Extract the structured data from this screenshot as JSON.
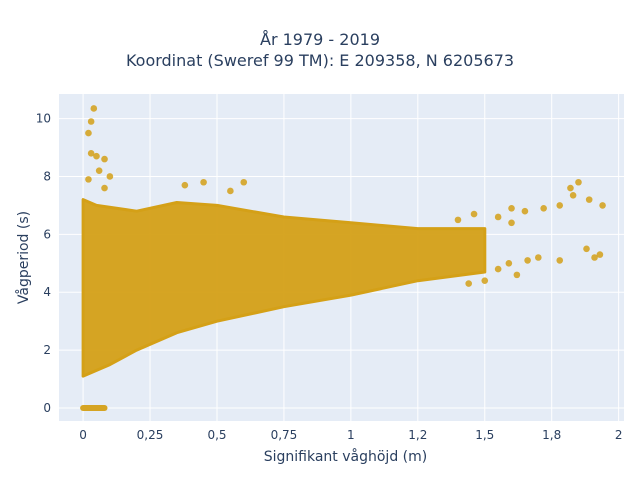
{
  "chart_data": {
    "type": "scatter",
    "title_lines": [
      "År 1979 - 2019",
      "Koordinat (Sweref 99 TM): E 209358, N 6205673"
    ],
    "xlabel": "Signifikant våghöjd (m)",
    "ylabel": "Vågperiod (s)",
    "xlim": [
      -0.09,
      2.02
    ],
    "ylim": [
      -0.45,
      10.85
    ],
    "x_ticks": [
      0,
      0.25,
      0.5,
      0.75,
      1,
      1.25,
      1.5,
      1.75,
      2
    ],
    "x_tick_labels": [
      "0",
      "0,25",
      "0,5",
      "0,75",
      "1",
      "1,2",
      "1,5",
      "1,8",
      "2"
    ],
    "y_ticks": [
      0,
      2,
      4,
      6,
      8,
      10
    ],
    "y_tick_labels": [
      "0",
      "2",
      "4",
      "6",
      "8",
      "10"
    ],
    "grid": true,
    "legend": "none",
    "colors": {
      "marker": "#d4a017",
      "plot_bg": "#e5ecf6",
      "grid": "#ffffff"
    },
    "dense_region": {
      "description_points": [
        [
          0,
          1.1
        ],
        [
          0.1,
          1.5
        ],
        [
          0.2,
          2.0
        ],
        [
          0.35,
          2.6
        ],
        [
          0.5,
          3.0
        ],
        [
          0.75,
          3.5
        ],
        [
          1.0,
          3.9
        ],
        [
          1.25,
          4.4
        ],
        [
          1.5,
          4.7
        ],
        [
          1.5,
          6.2
        ],
        [
          1.25,
          6.2
        ],
        [
          1.0,
          6.4
        ],
        [
          0.75,
          6.6
        ],
        [
          0.5,
          7.0
        ],
        [
          0.35,
          7.1
        ],
        [
          0.2,
          6.8
        ],
        [
          0.05,
          7.0
        ],
        [
          0,
          7.2
        ]
      ]
    },
    "zero_band": {
      "x_from": 0,
      "x_to": 0.08,
      "y": 0
    },
    "outliers": [
      [
        0.04,
        10.35
      ],
      [
        0.03,
        9.9
      ],
      [
        0.02,
        9.5
      ],
      [
        0.03,
        8.8
      ],
      [
        0.05,
        8.7
      ],
      [
        0.08,
        8.6
      ],
      [
        0.06,
        8.2
      ],
      [
        0.1,
        8.0
      ],
      [
        0.02,
        7.9
      ],
      [
        0.08,
        7.6
      ],
      [
        0.45,
        7.8
      ],
      [
        0.6,
        7.8
      ],
      [
        0.38,
        7.7
      ],
      [
        0.55,
        7.5
      ],
      [
        1.6,
        6.9
      ],
      [
        1.65,
        6.8
      ],
      [
        1.72,
        6.9
      ],
      [
        1.78,
        7.0
      ],
      [
        1.82,
        7.6
      ],
      [
        1.85,
        7.8
      ],
      [
        1.83,
        7.35
      ],
      [
        1.89,
        7.2
      ],
      [
        1.94,
        7.0
      ],
      [
        1.55,
        6.6
      ],
      [
        1.6,
        6.4
      ],
      [
        1.4,
        6.5
      ],
      [
        1.46,
        6.7
      ],
      [
        1.59,
        5.0
      ],
      [
        1.66,
        5.1
      ],
      [
        1.7,
        5.2
      ],
      [
        1.78,
        5.1
      ],
      [
        1.88,
        5.5
      ],
      [
        1.93,
        5.3
      ],
      [
        1.91,
        5.2
      ],
      [
        1.55,
        4.8
      ],
      [
        1.62,
        4.6
      ],
      [
        1.5,
        4.4
      ],
      [
        1.44,
        4.3
      ]
    ]
  }
}
